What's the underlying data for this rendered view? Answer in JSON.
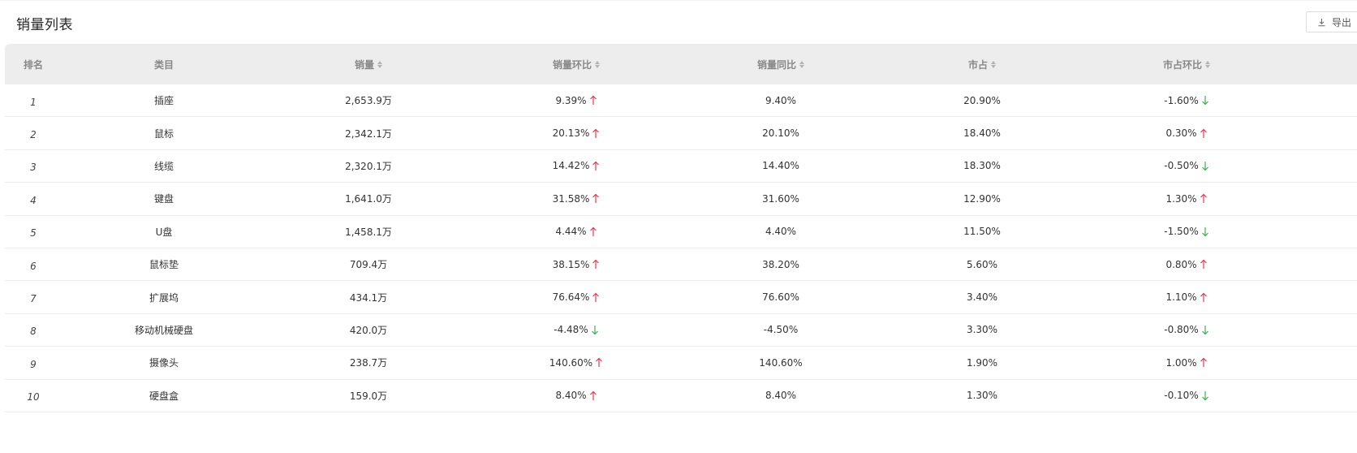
{
  "title": "销量列表",
  "export_label": "导出",
  "colors": {
    "up": "#e8384f",
    "down": "#3cb04a",
    "header_bg": "#ededed"
  },
  "headers": {
    "rank": "排名",
    "category": "类目",
    "sales": "销量",
    "sales_mom": "销量环比",
    "sales_yoy": "销量同比",
    "share": "市占",
    "share_mom": "市占环比"
  },
  "rows": [
    {
      "rank": "1",
      "category": "插座",
      "sales": "2,653.9万",
      "sales_mom": "9.39%",
      "mom_dir": "up",
      "sales_yoy": "9.40%",
      "share": "20.90%",
      "share_mom": "-1.60%",
      "smom_dir": "down"
    },
    {
      "rank": "2",
      "category": "鼠标",
      "sales": "2,342.1万",
      "sales_mom": "20.13%",
      "mom_dir": "up",
      "sales_yoy": "20.10%",
      "share": "18.40%",
      "share_mom": "0.30%",
      "smom_dir": "up"
    },
    {
      "rank": "3",
      "category": "线缆",
      "sales": "2,320.1万",
      "sales_mom": "14.42%",
      "mom_dir": "up",
      "sales_yoy": "14.40%",
      "share": "18.30%",
      "share_mom": "-0.50%",
      "smom_dir": "down"
    },
    {
      "rank": "4",
      "category": "键盘",
      "sales": "1,641.0万",
      "sales_mom": "31.58%",
      "mom_dir": "up",
      "sales_yoy": "31.60%",
      "share": "12.90%",
      "share_mom": "1.30%",
      "smom_dir": "up"
    },
    {
      "rank": "5",
      "category": "U盘",
      "sales": "1,458.1万",
      "sales_mom": "4.44%",
      "mom_dir": "up",
      "sales_yoy": "4.40%",
      "share": "11.50%",
      "share_mom": "-1.50%",
      "smom_dir": "down"
    },
    {
      "rank": "6",
      "category": "鼠标垫",
      "sales": "709.4万",
      "sales_mom": "38.15%",
      "mom_dir": "up",
      "sales_yoy": "38.20%",
      "share": "5.60%",
      "share_mom": "0.80%",
      "smom_dir": "up"
    },
    {
      "rank": "7",
      "category": "扩展坞",
      "sales": "434.1万",
      "sales_mom": "76.64%",
      "mom_dir": "up",
      "sales_yoy": "76.60%",
      "share": "3.40%",
      "share_mom": "1.10%",
      "smom_dir": "up"
    },
    {
      "rank": "8",
      "category": "移动机械硬盘",
      "sales": "420.0万",
      "sales_mom": "-4.48%",
      "mom_dir": "down",
      "sales_yoy": "-4.50%",
      "share": "3.30%",
      "share_mom": "-0.80%",
      "smom_dir": "down"
    },
    {
      "rank": "9",
      "category": "摄像头",
      "sales": "238.7万",
      "sales_mom": "140.60%",
      "mom_dir": "up",
      "sales_yoy": "140.60%",
      "share": "1.90%",
      "share_mom": "1.00%",
      "smom_dir": "up"
    },
    {
      "rank": "10",
      "category": "硬盘盒",
      "sales": "159.0万",
      "sales_mom": "8.40%",
      "mom_dir": "up",
      "sales_yoy": "8.40%",
      "share": "1.30%",
      "share_mom": "-0.10%",
      "smom_dir": "down"
    }
  ]
}
